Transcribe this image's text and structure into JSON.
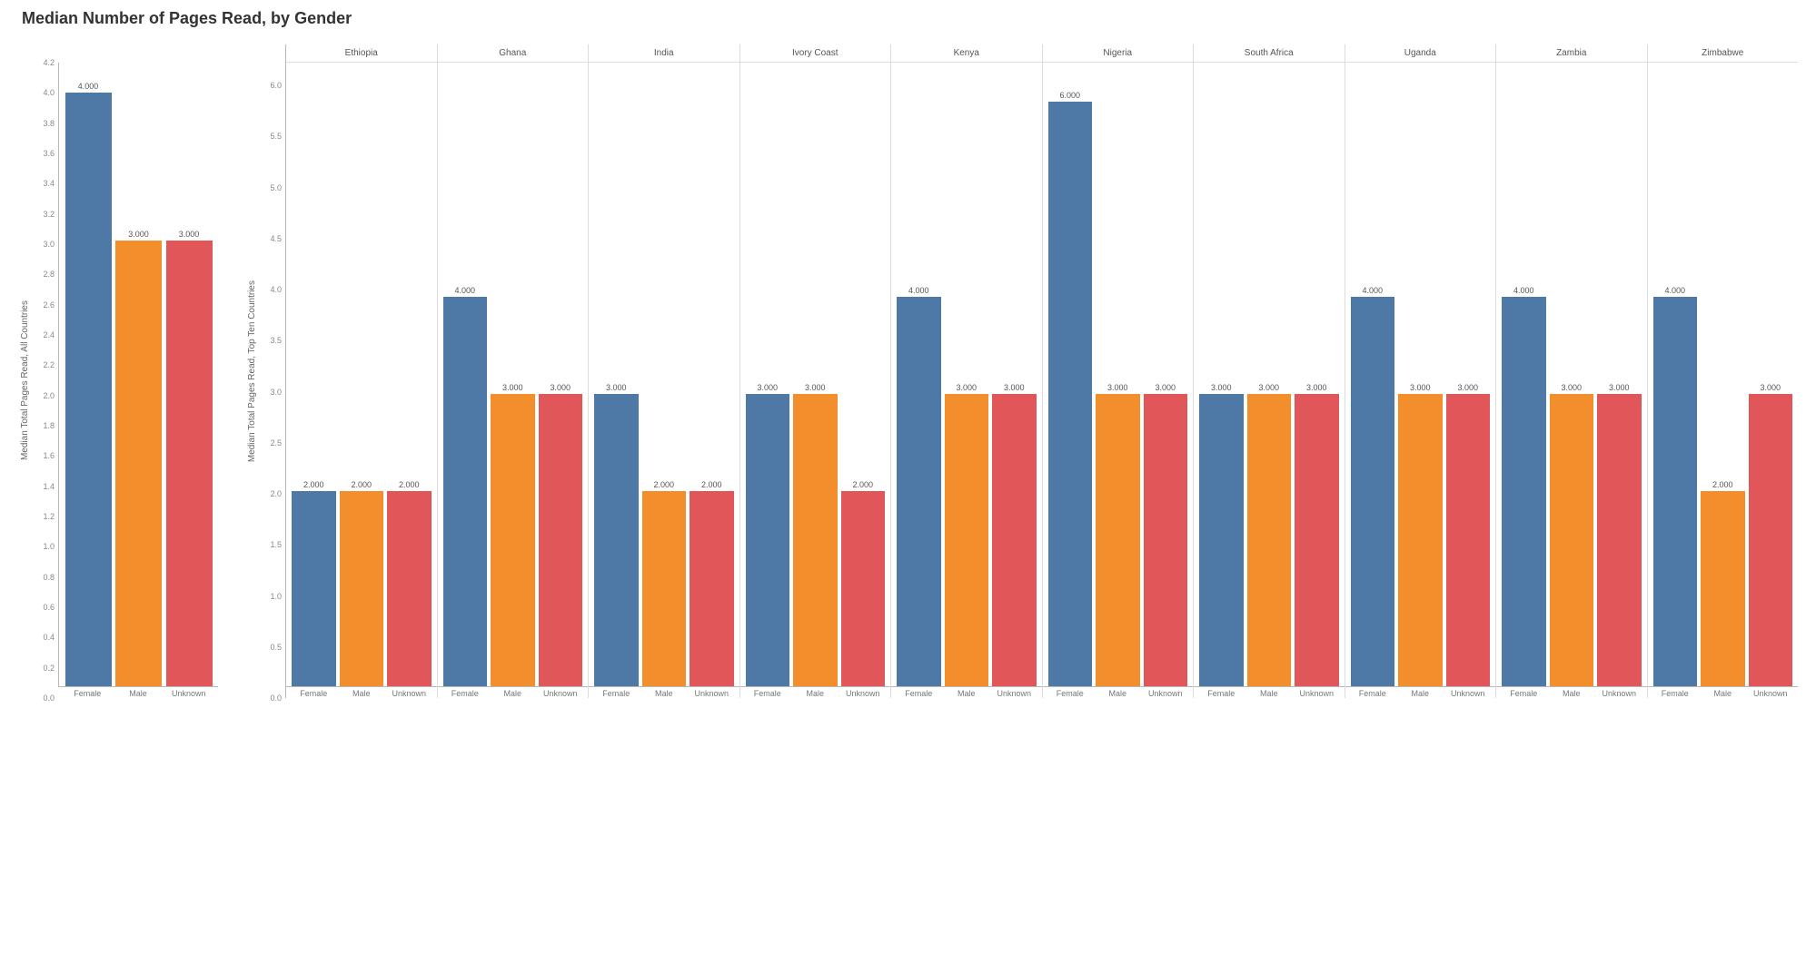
{
  "title": "Median Number of Pages Read, by Gender",
  "colors": {
    "Female": "#4e79a7",
    "Male": "#f28e2b",
    "Unknown": "#e15759",
    "grid": "#dcdcdc",
    "axis": "#b8b8b8",
    "bg": "#ffffff",
    "text": "#555555"
  },
  "genders": [
    "Female",
    "Male",
    "Unknown"
  ],
  "left_chart": {
    "type": "bar",
    "ylabel": "Median Total Pages Read, All Countries",
    "ylim": [
      0.0,
      4.2
    ],
    "ytick_step": 0.2,
    "ytick_decimals": 1,
    "data": {
      "Female": 4.0,
      "Male": 3.0,
      "Unknown": 3.0
    },
    "label_fontsize": 9,
    "title_fontsize": 18
  },
  "right_chart": {
    "type": "grouped-bar",
    "ylabel": "Median Total Pages Read, Top Ten Countries",
    "ylim": [
      0.0,
      6.4
    ],
    "ytick_step": 0.5,
    "ytick_decimals": 1,
    "countries": [
      {
        "name": "Ethiopia",
        "data": {
          "Female": 2.0,
          "Male": 2.0,
          "Unknown": 2.0
        }
      },
      {
        "name": "Ghana",
        "data": {
          "Female": 4.0,
          "Male": 3.0,
          "Unknown": 3.0
        }
      },
      {
        "name": "India",
        "data": {
          "Female": 3.0,
          "Male": 2.0,
          "Unknown": 2.0
        }
      },
      {
        "name": "Ivory Coast",
        "data": {
          "Female": 3.0,
          "Male": 3.0,
          "Unknown": 2.0
        }
      },
      {
        "name": "Kenya",
        "data": {
          "Female": 4.0,
          "Male": 3.0,
          "Unknown": 3.0
        }
      },
      {
        "name": "Nigeria",
        "data": {
          "Female": 6.0,
          "Male": 3.0,
          "Unknown": 3.0
        }
      },
      {
        "name": "South Africa",
        "data": {
          "Female": 3.0,
          "Male": 3.0,
          "Unknown": 3.0
        }
      },
      {
        "name": "Uganda",
        "data": {
          "Female": 4.0,
          "Male": 3.0,
          "Unknown": 3.0
        }
      },
      {
        "name": "Zambia",
        "data": {
          "Female": 4.0,
          "Male": 3.0,
          "Unknown": 3.0
        }
      },
      {
        "name": "Zimbabwe",
        "data": {
          "Female": 4.0,
          "Male": 2.0,
          "Unknown": 3.0
        }
      }
    ],
    "label_fontsize": 9
  }
}
